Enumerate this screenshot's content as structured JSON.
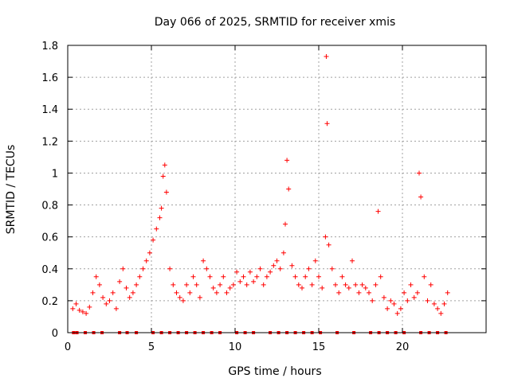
{
  "chart_data": {
    "type": "scatter",
    "title": "Day 066 of 2025, SRMTID for receiver xmis",
    "xlabel": "GPS time / hours",
    "ylabel": "SRMTID / TECUs",
    "xlim": [
      0,
      25
    ],
    "ylim": [
      0,
      1.8
    ],
    "x_ticks": [
      0,
      5,
      10,
      15,
      20
    ],
    "y_ticks": [
      0,
      0.2,
      0.4,
      0.6,
      0.8,
      1,
      1.2,
      1.4,
      1.6,
      1.8
    ],
    "x_tick_labels": [
      "0",
      "5",
      "10",
      "15",
      "20"
    ],
    "y_tick_labels": [
      "0",
      "0.2",
      "0.4",
      "0.6",
      "0.8",
      "1",
      "1.2",
      "1.4",
      "1.6",
      "1.8"
    ],
    "grid": true,
    "marker": "plus",
    "color": "#ff0000",
    "baseline_markers_y": 0,
    "baseline_markers_x": [
      0.35,
      0.55,
      1.05,
      1.55,
      2.05,
      3.1,
      3.55,
      4.1,
      5.1,
      5.6,
      6.1,
      6.6,
      7.1,
      7.6,
      8.1,
      8.6,
      9.1,
      10.1,
      10.6,
      11.1,
      12.1,
      12.6,
      13.1,
      13.6,
      14.1,
      14.6,
      15.1,
      16.1,
      17.1,
      18.1,
      18.6,
      19.1,
      19.6,
      20.1,
      21.1,
      21.6,
      22.1,
      22.6
    ],
    "series": [
      {
        "name": "SRMTID",
        "x": [
          0.3,
          0.5,
          0.7,
          0.9,
          1.1,
          1.3,
          1.5,
          1.7,
          1.9,
          2.1,
          2.3,
          2.5,
          2.7,
          2.9,
          3.1,
          3.3,
          3.5,
          3.7,
          3.9,
          4.1,
          4.3,
          4.5,
          4.7,
          4.9,
          5.1,
          5.3,
          5.5,
          5.6,
          5.7,
          5.8,
          5.9,
          6.1,
          6.3,
          6.5,
          6.7,
          6.9,
          7.1,
          7.3,
          7.5,
          7.7,
          7.9,
          8.1,
          8.3,
          8.5,
          8.7,
          8.9,
          9.1,
          9.3,
          9.5,
          9.7,
          9.9,
          10.1,
          10.3,
          10.5,
          10.7,
          10.9,
          11.1,
          11.3,
          11.5,
          11.7,
          11.9,
          12.1,
          12.3,
          12.5,
          12.7,
          12.9,
          13.0,
          13.1,
          13.2,
          13.4,
          13.6,
          13.8,
          14.0,
          14.2,
          14.4,
          14.6,
          14.8,
          15.0,
          15.2,
          15.4,
          15.45,
          15.5,
          15.6,
          15.8,
          16.0,
          16.2,
          16.4,
          16.6,
          16.8,
          17.0,
          17.2,
          17.4,
          17.6,
          17.8,
          18.0,
          18.2,
          18.4,
          18.55,
          18.7,
          18.9,
          19.1,
          19.3,
          19.5,
          19.7,
          19.9,
          20.1,
          20.3,
          20.5,
          20.7,
          20.9,
          21.0,
          21.1,
          21.3,
          21.5,
          21.7,
          21.9,
          22.1,
          22.3,
          22.5,
          22.7
        ],
        "y": [
          0.15,
          0.18,
          0.14,
          0.13,
          0.12,
          0.16,
          0.25,
          0.35,
          0.3,
          0.22,
          0.18,
          0.2,
          0.25,
          0.15,
          0.32,
          0.4,
          0.28,
          0.22,
          0.25,
          0.3,
          0.35,
          0.4,
          0.45,
          0.5,
          0.58,
          0.65,
          0.72,
          0.78,
          0.98,
          1.05,
          0.88,
          0.4,
          0.3,
          0.25,
          0.22,
          0.2,
          0.3,
          0.25,
          0.35,
          0.3,
          0.22,
          0.45,
          0.4,
          0.35,
          0.28,
          0.25,
          0.3,
          0.35,
          0.25,
          0.28,
          0.3,
          0.38,
          0.32,
          0.35,
          0.3,
          0.38,
          0.32,
          0.35,
          0.4,
          0.3,
          0.35,
          0.38,
          0.42,
          0.45,
          0.4,
          0.5,
          0.68,
          1.08,
          0.9,
          0.42,
          0.35,
          0.3,
          0.28,
          0.35,
          0.4,
          0.3,
          0.45,
          0.35,
          0.28,
          0.6,
          1.73,
          1.31,
          0.55,
          0.4,
          0.3,
          0.25,
          0.35,
          0.3,
          0.28,
          0.45,
          0.3,
          0.25,
          0.3,
          0.28,
          0.25,
          0.2,
          0.3,
          0.76,
          0.35,
          0.22,
          0.15,
          0.2,
          0.18,
          0.12,
          0.15,
          0.25,
          0.2,
          0.3,
          0.22,
          0.25,
          1.0,
          0.85,
          0.35,
          0.2,
          0.3,
          0.18,
          0.15,
          0.12,
          0.18,
          0.25
        ]
      }
    ]
  }
}
